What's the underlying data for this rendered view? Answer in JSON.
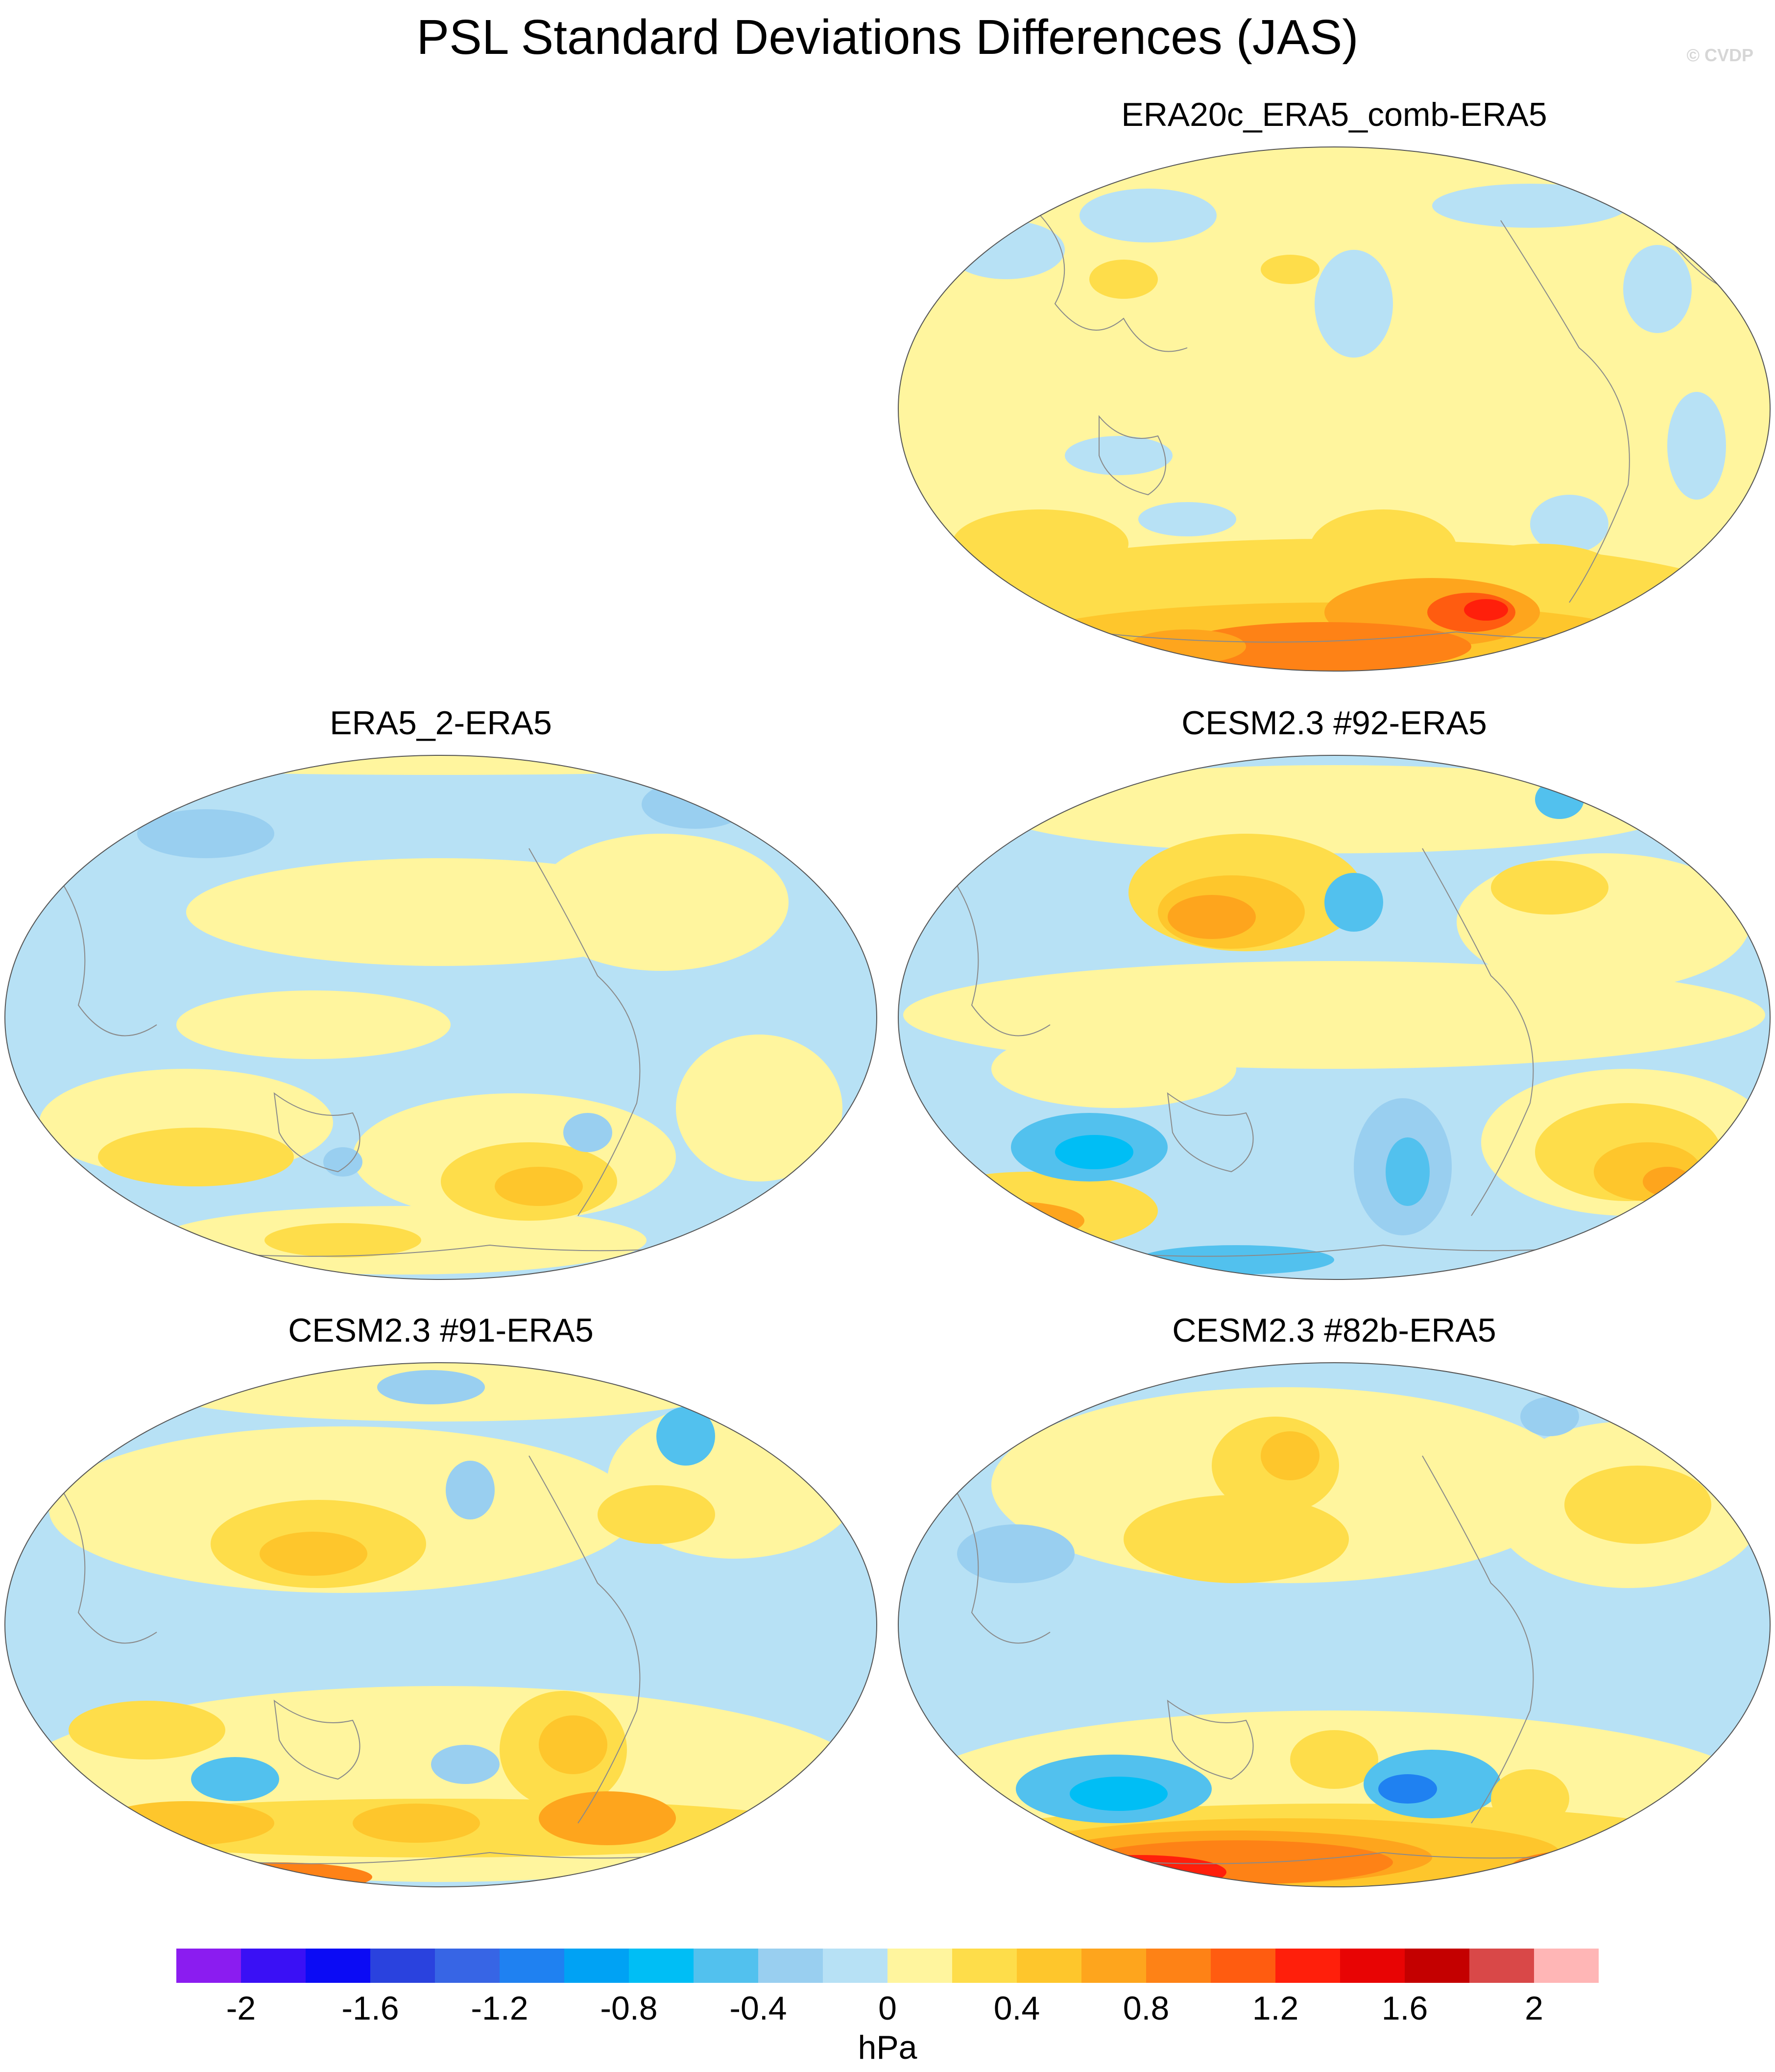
{
  "title": "PSL Standard Deviations Differences (JAS)",
  "credit": "© CVDP",
  "colorbar": {
    "unit": "hPa",
    "colors": [
      "#8b1cf0",
      "#3a10f5",
      "#0b0bf5",
      "#2a42de",
      "#3765e5",
      "#1f81f1",
      "#00a2f4",
      "#00bef5",
      "#52c1ee",
      "#99cff0",
      "#b7e1f5",
      "#fff59e",
      "#fedd4a",
      "#fec62c",
      "#fea51d",
      "#fe8216",
      "#ff5c10",
      "#ff1f0b",
      "#e80404",
      "#c40000",
      "#d94848",
      "#ffb6b6"
    ],
    "tick_labels": [
      "-2",
      "-1.6",
      "-1.2",
      "-0.8",
      "-0.4",
      "0",
      "0.4",
      "0.8",
      "1.2",
      "1.6",
      "2"
    ]
  },
  "panels": [
    {
      "title": "ERA20c_ERA5_comb-ERA5",
      "base": "yellow"
    },
    {
      "title": "ERA5_2-ERA5",
      "base": "mixed"
    },
    {
      "title": "CESM2.3 #92-ERA5",
      "base": "mixed"
    },
    {
      "title": "CESM2.3 #91-ERA5",
      "base": "mixed"
    },
    {
      "title": "CESM2.3 #82b-ERA5",
      "base": "mixed"
    }
  ]
}
